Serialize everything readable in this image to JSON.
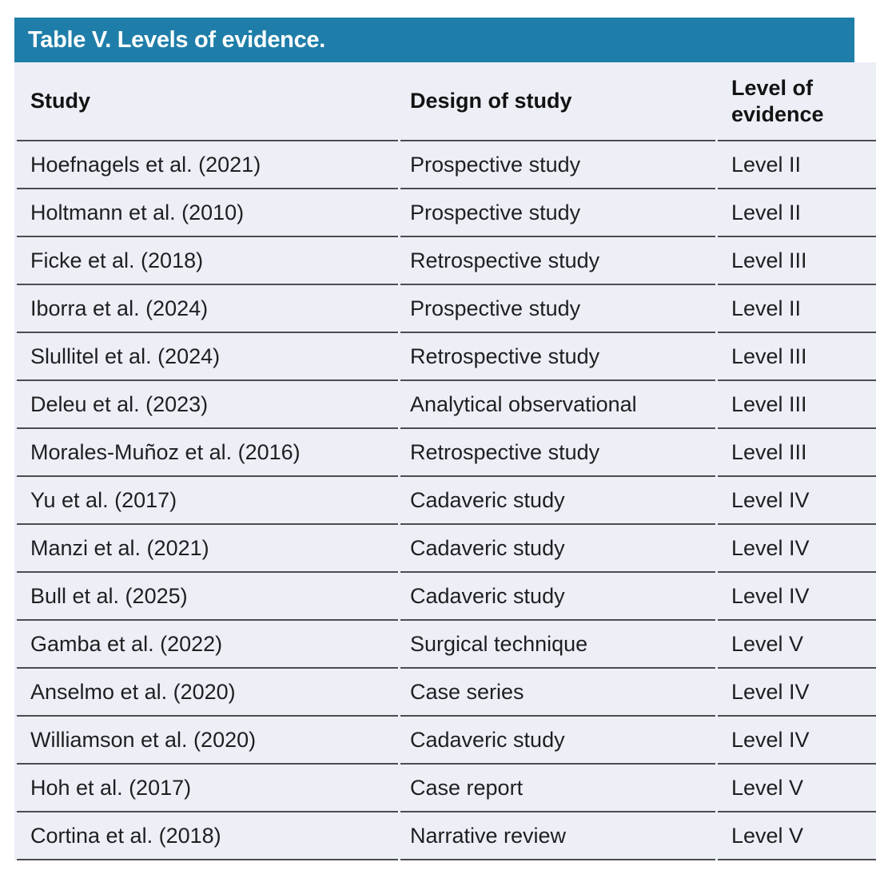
{
  "table": {
    "title": "Table V. Levels of evidence.",
    "columns": [
      "Study",
      "Design of study",
      "Level of evidence"
    ],
    "rows": [
      [
        "Hoefnagels et al. (2021)",
        "Prospective study",
        "Level II"
      ],
      [
        "Holtmann et al. (2010)",
        "Prospective study",
        "Level II"
      ],
      [
        "Ficke et al. (2018)",
        "Retrospective study",
        "Level III"
      ],
      [
        "Iborra et al. (2024)",
        "Prospective study",
        "Level II"
      ],
      [
        "Slullitel et al. (2024)",
        "Retrospective study",
        "Level III"
      ],
      [
        "Deleu et al. (2023)",
        "Analytical observational",
        "Level III"
      ],
      [
        "Morales-Muñoz et al. (2016)",
        "Retrospective study",
        "Level III"
      ],
      [
        "Yu et al. (2017)",
        "Cadaveric study",
        "Level IV"
      ],
      [
        "Manzi et al. (2021)",
        "Cadaveric study",
        "Level IV"
      ],
      [
        "Bull et al. (2025)",
        "Cadaveric study",
        "Level IV"
      ],
      [
        "Gamba et al. (2022)",
        "Surgical technique",
        "Level V"
      ],
      [
        "Anselmo et al. (2020)",
        "Case series",
        "Level IV"
      ],
      [
        "Williamson et al. (2020)",
        "Cadaveric study",
        "Level IV"
      ],
      [
        "Hoh et al. (2017)",
        "Case report",
        "Level V"
      ],
      [
        "Cortina et al. (2018)",
        "Narrative review",
        "Level V"
      ]
    ]
  },
  "colors": {
    "title_bar_bg": "#1f7ea9",
    "title_text": "#ffffff",
    "body_bg": "#edeff7",
    "separator_line": "#4c4c4f",
    "body_text": "#1f1f21"
  }
}
